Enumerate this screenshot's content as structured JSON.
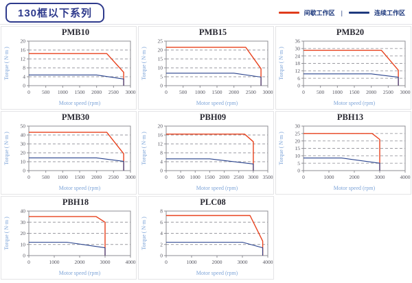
{
  "header": {
    "title": "130框以下系列",
    "legend_separator": "|",
    "legend": [
      {
        "label": "间歇工作区",
        "color": "#e03c1c"
      },
      {
        "label": "连续工作区",
        "color": "#1f3a7e"
      }
    ]
  },
  "colors": {
    "red_line": "#e8401c",
    "blue_line": "#27418c",
    "plot_border": "#8d8d93",
    "gridline": "#9a9aa0",
    "axis_label": "#7da4d8",
    "tick_label": "#55555f",
    "accent_navy": "#2e3a8c"
  },
  "chart_data": [
    {
      "type": "line",
      "title": "PMB10",
      "xlabel": "Motor speed (rpm)",
      "ylabel": "Torque ( N·m )",
      "xlim": [
        0,
        3000
      ],
      "ylim": [
        0,
        20
      ],
      "xticks": [
        0,
        500,
        1000,
        1500,
        2000,
        2500,
        3000
      ],
      "yticks": [
        0,
        4,
        8,
        12,
        16,
        20
      ],
      "grid": "dashed-horizontal",
      "legend_position": "none",
      "series": [
        {
          "name": "间歇工作区",
          "zone": "intermittent",
          "points": [
            [
              0,
              14.4
            ],
            [
              2300,
              14.4
            ],
            [
              2800,
              6
            ],
            [
              2800,
              0
            ]
          ]
        },
        {
          "name": "连续工作区",
          "zone": "continuous",
          "points": [
            [
              0,
              4.8
            ],
            [
              2000,
              4.8
            ],
            [
              2800,
              3
            ],
            [
              2800,
              0
            ]
          ]
        }
      ]
    },
    {
      "type": "line",
      "title": "PMB15",
      "xlabel": "Motor speed (rpm)",
      "ylabel": "Torque ( N·m )",
      "xlim": [
        0,
        3000
      ],
      "ylim": [
        0,
        25
      ],
      "xticks": [
        0,
        500,
        1000,
        1500,
        2000,
        2500,
        3000
      ],
      "yticks": [
        0,
        5,
        10,
        15,
        20,
        25
      ],
      "grid": "dashed-horizontal",
      "legend_position": "none",
      "series": [
        {
          "name": "间歇工作区",
          "zone": "intermittent",
          "points": [
            [
              0,
              21.5
            ],
            [
              2350,
              21.5
            ],
            [
              2800,
              9.5
            ],
            [
              2800,
              0
            ]
          ]
        },
        {
          "name": "连续工作区",
          "zone": "continuous",
          "points": [
            [
              0,
              7
            ],
            [
              2000,
              7
            ],
            [
              2800,
              4.8
            ],
            [
              2800,
              0
            ]
          ]
        }
      ]
    },
    {
      "type": "line",
      "title": "PMB20",
      "xlabel": "Motor speed (rpm)",
      "ylabel": "Torque ( N·m )",
      "xlim": [
        0,
        3000
      ],
      "ylim": [
        0,
        36
      ],
      "xticks": [
        0,
        500,
        1000,
        1500,
        2000,
        2500,
        3000
      ],
      "yticks": [
        0,
        6,
        12,
        18,
        24,
        30,
        36
      ],
      "grid": "dashed-horizontal",
      "legend_position": "none",
      "series": [
        {
          "name": "间歇工作区",
          "zone": "intermittent",
          "points": [
            [
              0,
              28.6
            ],
            [
              2300,
              28.6
            ],
            [
              2800,
              12.5
            ],
            [
              2800,
              0
            ]
          ]
        },
        {
          "name": "连续工作区",
          "zone": "continuous",
          "points": [
            [
              0,
              9.5
            ],
            [
              2000,
              9.5
            ],
            [
              2800,
              6.8
            ],
            [
              2800,
              0
            ]
          ]
        }
      ]
    },
    {
      "type": "line",
      "title": "PMB30",
      "xlabel": "Motor speed (rpm)",
      "ylabel": "Torque ( N·m )",
      "xlim": [
        0,
        3000
      ],
      "ylim": [
        0,
        50
      ],
      "xticks": [
        0,
        500,
        1000,
        1500,
        2000,
        2500,
        3000
      ],
      "yticks": [
        0,
        10,
        20,
        30,
        40,
        50
      ],
      "grid": "dashed-horizontal",
      "legend_position": "none",
      "series": [
        {
          "name": "间歇工作区",
          "zone": "intermittent",
          "points": [
            [
              0,
              43
            ],
            [
              2300,
              43
            ],
            [
              2800,
              19
            ],
            [
              2800,
              0
            ]
          ]
        },
        {
          "name": "连续工作区",
          "zone": "continuous",
          "points": [
            [
              0,
              14.3
            ],
            [
              2000,
              14.3
            ],
            [
              2800,
              10.5
            ],
            [
              2800,
              0
            ]
          ]
        }
      ]
    },
    {
      "type": "line",
      "title": "PBH09",
      "xlabel": "Motor speed (rpm)",
      "ylabel": "Torque ( N·m )",
      "xlim": [
        0,
        3500
      ],
      "ylim": [
        0,
        20
      ],
      "xticks": [
        0,
        500,
        1000,
        1500,
        2000,
        2500,
        3000,
        3500
      ],
      "yticks": [
        0,
        4,
        8,
        12,
        16,
        20
      ],
      "grid": "dashed-horizontal",
      "legend_position": "none",
      "series": [
        {
          "name": "间歇工作区",
          "zone": "intermittent",
          "points": [
            [
              0,
              16.4
            ],
            [
              2700,
              16.4
            ],
            [
              3000,
              13
            ],
            [
              3000,
              0
            ]
          ]
        },
        {
          "name": "连续工作区",
          "zone": "continuous",
          "points": [
            [
              0,
              5.3
            ],
            [
              1500,
              5.3
            ],
            [
              3000,
              3
            ],
            [
              3000,
              0
            ]
          ]
        }
      ]
    },
    {
      "type": "line",
      "title": "PBH13",
      "xlabel": "Motor speed (rpm)",
      "ylabel": "Torque ( N·m )",
      "xlim": [
        0,
        4000
      ],
      "ylim": [
        0,
        30
      ],
      "xticks": [
        0,
        1000,
        2000,
        3000,
        4000
      ],
      "yticks": [
        0,
        5,
        10,
        15,
        20,
        25,
        30
      ],
      "grid": "dashed-horizontal",
      "legend_position": "none",
      "series": [
        {
          "name": "间歇工作区",
          "zone": "intermittent",
          "points": [
            [
              0,
              25
            ],
            [
              2700,
              25
            ],
            [
              3000,
              21
            ],
            [
              3000,
              0
            ]
          ]
        },
        {
          "name": "连续工作区",
          "zone": "continuous",
          "points": [
            [
              0,
              8.5
            ],
            [
              1500,
              8.5
            ],
            [
              3000,
              5
            ],
            [
              3000,
              0
            ]
          ]
        }
      ]
    },
    {
      "type": "line",
      "title": "PBH18",
      "xlabel": "Motor speed (rpm)",
      "ylabel": "Torque ( N·m )",
      "xlim": [
        0,
        4000
      ],
      "ylim": [
        0,
        40
      ],
      "xticks": [
        0,
        1000,
        2000,
        3000,
        4000
      ],
      "yticks": [
        0,
        10,
        20,
        30,
        40
      ],
      "grid": "dashed-horizontal",
      "legend_position": "none",
      "series": [
        {
          "name": "间歇工作区",
          "zone": "intermittent",
          "points": [
            [
              0,
              35
            ],
            [
              2650,
              35
            ],
            [
              3000,
              30
            ],
            [
              3000,
              0
            ]
          ]
        },
        {
          "name": "连续工作区",
          "zone": "continuous",
          "points": [
            [
              0,
              12
            ],
            [
              1500,
              12
            ],
            [
              3000,
              7
            ],
            [
              3000,
              0
            ]
          ]
        }
      ]
    },
    {
      "type": "line",
      "title": "PLC08",
      "xlabel": "Motor speed (rpm)",
      "ylabel": "Torque ( N·m )",
      "xlim": [
        0,
        4000
      ],
      "ylim": [
        0,
        8
      ],
      "xticks": [
        0,
        1000,
        2000,
        3000,
        4000
      ],
      "yticks": [
        0,
        2,
        4,
        6,
        8
      ],
      "grid": "dashed-horizontal",
      "legend_position": "none",
      "series": [
        {
          "name": "间歇工作区",
          "zone": "intermittent",
          "points": [
            [
              0,
              7.2
            ],
            [
              3300,
              7.2
            ],
            [
              3800,
              2.6
            ],
            [
              3800,
              0
            ]
          ]
        },
        {
          "name": "连续工作区",
          "zone": "continuous",
          "points": [
            [
              0,
              2.4
            ],
            [
              3000,
              2.4
            ],
            [
              3800,
              1.4
            ],
            [
              3800,
              0
            ]
          ]
        }
      ]
    }
  ]
}
